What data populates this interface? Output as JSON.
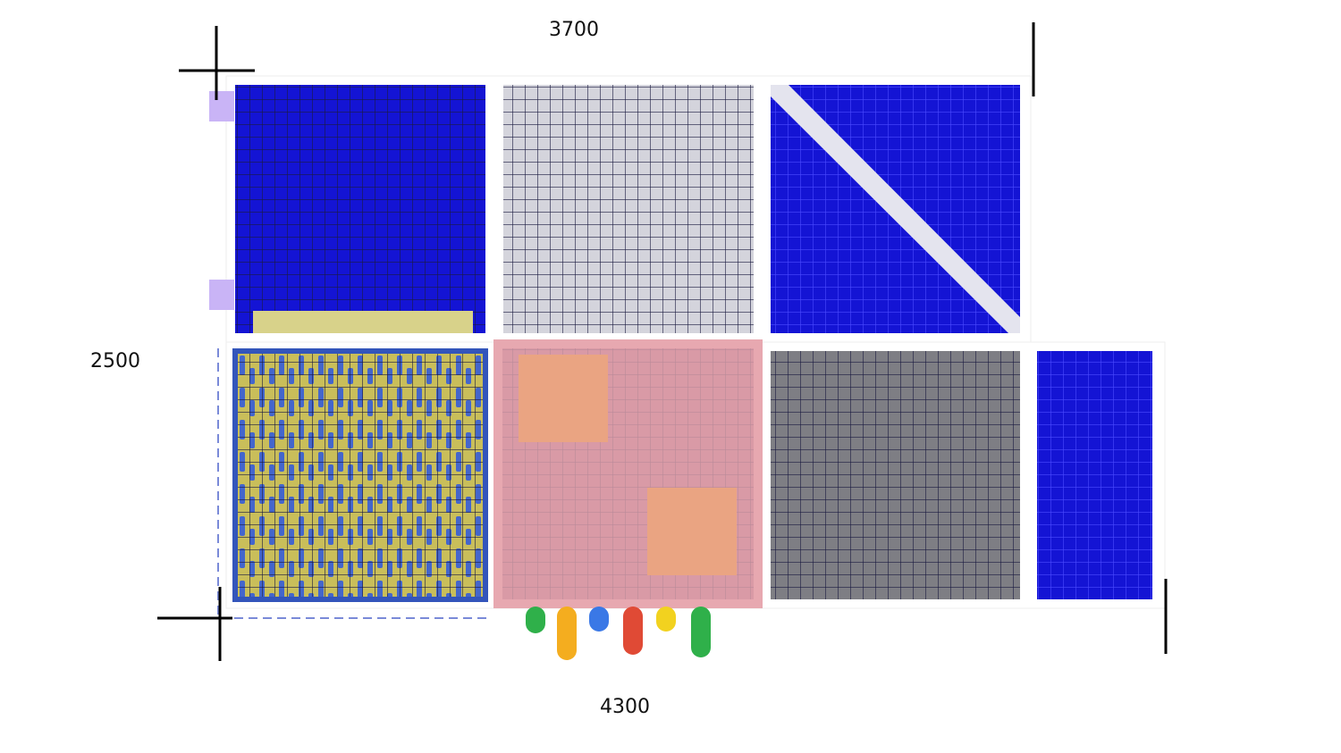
{
  "dimensions": {
    "top": "3700",
    "left": "2500",
    "bottom": "4300"
  }
}
